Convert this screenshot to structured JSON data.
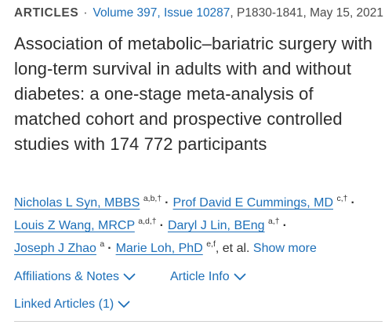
{
  "meta": {
    "section": "ARTICLES",
    "separator": "·",
    "volume_issue": "Volume 397, Issue 10287",
    "pages_date": ", P1830-1841, May 15, 2021"
  },
  "article": {
    "title": "Association of metabolic–bariatric surgery with long-term survival in adults with and without diabetes: a one-stage meta-analysis of matched cohort and prospective controlled studies with 174 772 participants"
  },
  "authors": {
    "list": [
      {
        "name": "Nicholas L Syn, MBBS",
        "affil": "a,b,†"
      },
      {
        "name": "Prof David E Cummings, MD",
        "affil": "c,†"
      },
      {
        "name": "Louis Z Wang, MRCP",
        "affil": "a,d,†"
      },
      {
        "name": "Daryl J Lin, BEng",
        "affil": "a,†"
      },
      {
        "name": "Joseph J Zhao",
        "affil": "a"
      },
      {
        "name": "Marie Loh, PhD",
        "affil": "e,f"
      }
    ],
    "separator": "·",
    "et_al": ", et al.",
    "show_more": "Show more"
  },
  "toggles": {
    "affiliations": "Affiliations & Notes",
    "article_info": "Article Info",
    "linked_articles": "Linked Articles (1)"
  },
  "colors": {
    "link": "#1d6fb8",
    "text": "#333333",
    "title": "#2d2d2d"
  },
  "icons": {
    "toggle_chevron": "chevron-down-icon"
  }
}
